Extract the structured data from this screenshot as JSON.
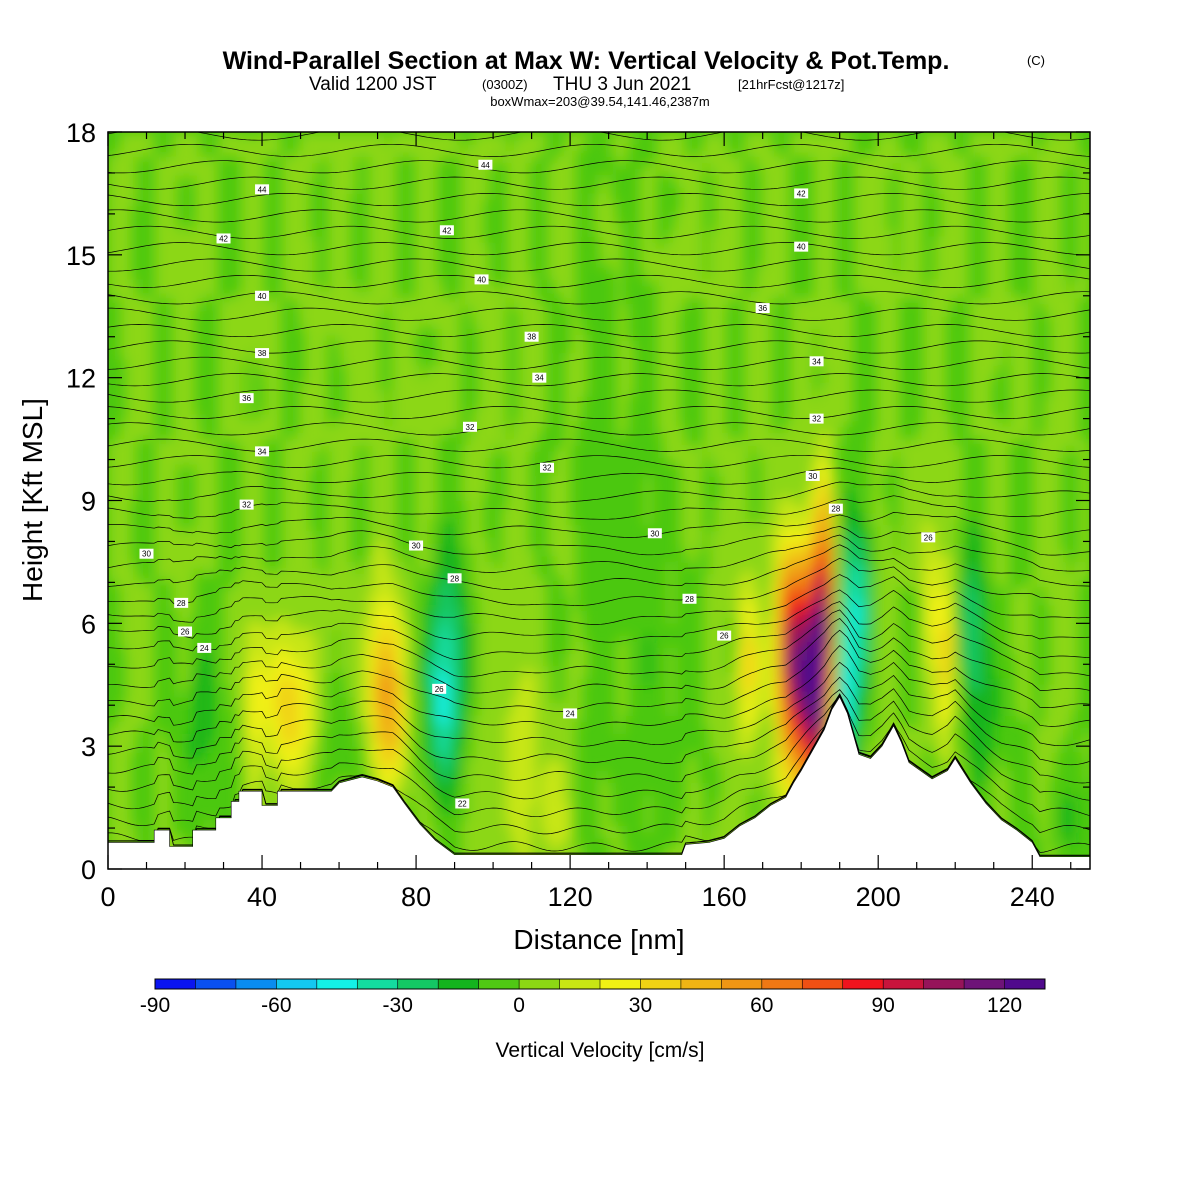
{
  "header": {
    "title": "Wind-Parallel Section at Max W: Vertical Velocity & Pot.Temp.",
    "title_mark": "(C)",
    "valid_main": "Valid 1200 JST",
    "valid_zulu": "(0300Z)",
    "valid_date": "THU 3 Jun 2021",
    "valid_fcst": "[21hrFcst@1217z]",
    "box_info": "boxWmax=203@39.54,141.46,2387m"
  },
  "chart_data": {
    "type": "heatmap",
    "xlabel": "Distance [nm]",
    "ylabel": "Height [Kft MSL]",
    "xlim": [
      0,
      255
    ],
    "ylim": [
      0,
      18
    ],
    "x_ticks": [
      0,
      40,
      80,
      120,
      160,
      200,
      240
    ],
    "y_ticks": [
      0,
      3,
      6,
      9,
      12,
      15,
      18
    ],
    "colorbar": {
      "title": "Vertical Velocity [cm/s]",
      "range": [
        -90,
        130
      ],
      "step": 10,
      "ticks": [
        -90,
        -60,
        -30,
        0,
        30,
        60,
        90,
        120
      ],
      "colors": [
        "#0a14f0",
        "#0a50f0",
        "#0a8cf0",
        "#14c8f0",
        "#14f0e6",
        "#14dca0",
        "#14c864",
        "#14b41e",
        "#50c814",
        "#8cd714",
        "#c8e614",
        "#f0f014",
        "#f0d214",
        "#f0b414",
        "#f09614",
        "#f07814",
        "#f05014",
        "#f0141e",
        "#c8143c",
        "#96145a",
        "#6e1478",
        "#500a8c"
      ]
    },
    "terrain": [
      [
        0,
        0.65
      ],
      [
        12,
        0.65
      ],
      [
        12,
        0.95
      ],
      [
        16,
        0.95
      ],
      [
        16,
        0.55
      ],
      [
        22,
        0.55
      ],
      [
        22,
        0.95
      ],
      [
        28,
        0.95
      ],
      [
        28,
        1.25
      ],
      [
        32,
        1.25
      ],
      [
        32,
        1.65
      ],
      [
        34,
        1.65
      ],
      [
        34,
        1.9
      ],
      [
        40,
        1.9
      ],
      [
        40,
        1.55
      ],
      [
        44,
        1.55
      ],
      [
        44,
        1.9
      ],
      [
        58,
        1.9
      ],
      [
        60,
        2.1
      ],
      [
        64,
        2.2
      ],
      [
        66,
        2.25
      ],
      [
        70,
        2.15
      ],
      [
        74,
        2.0
      ],
      [
        77,
        1.6
      ],
      [
        81,
        1.1
      ],
      [
        85,
        0.7
      ],
      [
        90,
        0.35
      ],
      [
        149,
        0.35
      ],
      [
        150,
        0.6
      ],
      [
        156,
        0.65
      ],
      [
        160,
        0.75
      ],
      [
        164,
        1.05
      ],
      [
        168,
        1.25
      ],
      [
        172,
        1.55
      ],
      [
        176,
        1.75
      ],
      [
        178,
        2.1
      ],
      [
        180,
        2.4
      ],
      [
        183,
        2.9
      ],
      [
        186,
        3.4
      ],
      [
        188,
        3.9
      ],
      [
        190,
        4.2
      ],
      [
        192,
        3.8
      ],
      [
        195,
        2.8
      ],
      [
        198,
        2.7
      ],
      [
        201,
        3.0
      ],
      [
        204,
        3.5
      ],
      [
        206,
        3.1
      ],
      [
        208,
        2.6
      ],
      [
        211,
        2.4
      ],
      [
        214,
        2.2
      ],
      [
        218,
        2.4
      ],
      [
        220,
        2.7
      ],
      [
        224,
        2.1
      ],
      [
        228,
        1.6
      ],
      [
        232,
        1.2
      ],
      [
        236,
        0.95
      ],
      [
        240,
        0.65
      ],
      [
        242,
        0.3
      ],
      [
        255,
        0.3
      ]
    ],
    "theta_labels": [
      "44",
      "44",
      "42",
      "42",
      "42",
      "40",
      "40",
      "40",
      "38",
      "38",
      "36",
      "36",
      "34",
      "34",
      "34",
      "32",
      "32",
      "32",
      "32",
      "30",
      "30",
      "30",
      "30",
      "28",
      "28",
      "28",
      "28",
      "26",
      "26",
      "26",
      "26",
      "24",
      "24",
      "22"
    ]
  }
}
